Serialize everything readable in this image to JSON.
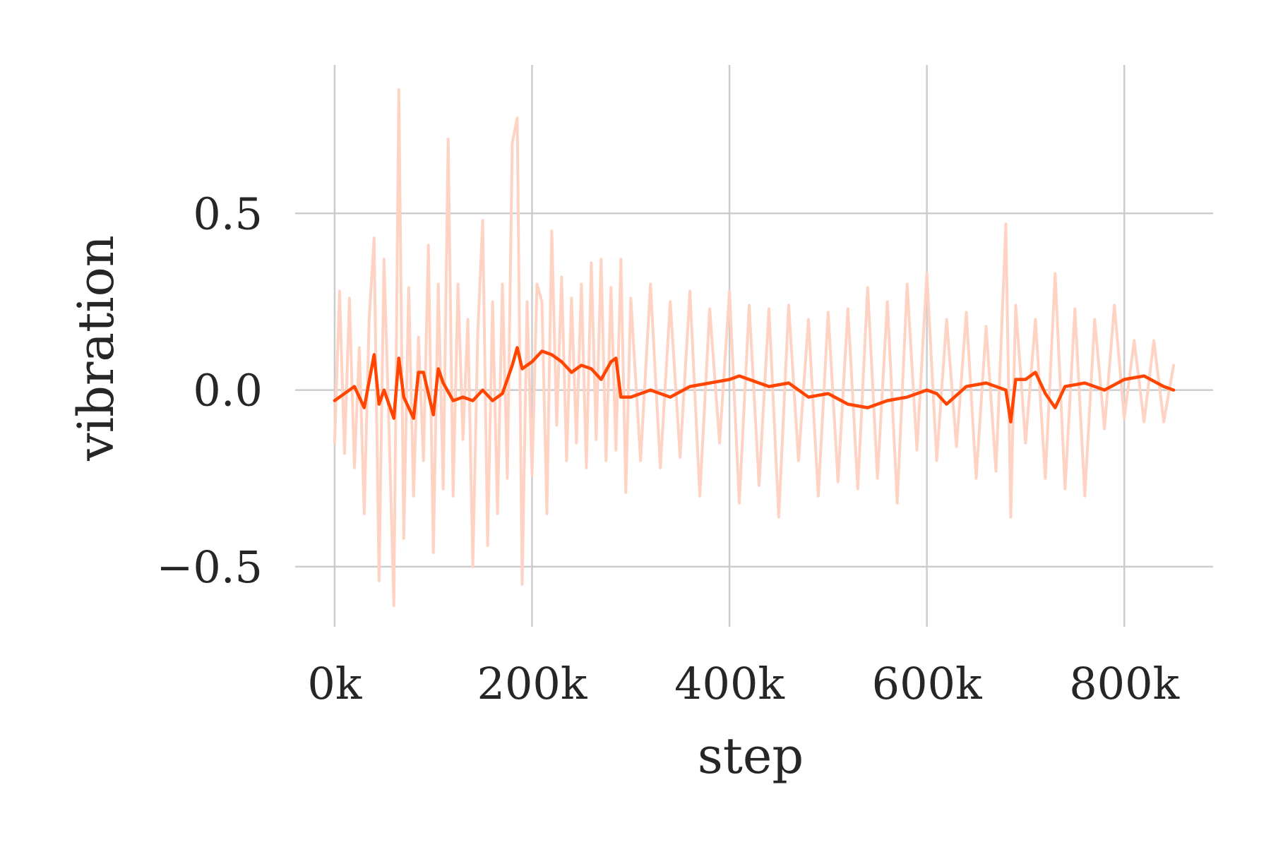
{
  "chart_data": {
    "type": "line",
    "title": "",
    "xlabel": "step",
    "ylabel": "vibration",
    "xlim": [
      -40000,
      890000
    ],
    "ylim": [
      -0.67,
      0.92
    ],
    "x_ticks": [
      {
        "value": 0,
        "label": "0k"
      },
      {
        "value": 200000,
        "label": "200k"
      },
      {
        "value": 400000,
        "label": "400k"
      },
      {
        "value": 600000,
        "label": "600k"
      },
      {
        "value": 800000,
        "label": "800k"
      }
    ],
    "y_ticks": [
      {
        "value": 0.5,
        "label": "0.5"
      },
      {
        "value": 0.0,
        "label": "0.0"
      },
      {
        "value": -0.5,
        "label": "−0.5"
      }
    ],
    "grid": true,
    "legend": "none",
    "series": [
      {
        "role": "raw",
        "color": "#ffd3c4",
        "x": [
          0,
          5000,
          10000,
          15000,
          20000,
          25000,
          30000,
          35000,
          40000,
          45000,
          50000,
          55000,
          60000,
          65000,
          70000,
          75000,
          80000,
          85000,
          90000,
          95000,
          100000,
          105000,
          110000,
          115000,
          120000,
          125000,
          130000,
          135000,
          140000,
          145000,
          150000,
          155000,
          160000,
          165000,
          170000,
          175000,
          180000,
          185000,
          190000,
          195000,
          200000,
          205000,
          210000,
          215000,
          220000,
          225000,
          230000,
          235000,
          240000,
          245000,
          250000,
          255000,
          260000,
          265000,
          270000,
          275000,
          280000,
          285000,
          290000,
          295000,
          300000,
          310000,
          320000,
          330000,
          340000,
          350000,
          360000,
          370000,
          380000,
          390000,
          400000,
          410000,
          420000,
          430000,
          440000,
          450000,
          460000,
          470000,
          480000,
          490000,
          500000,
          510000,
          520000,
          530000,
          540000,
          550000,
          560000,
          570000,
          580000,
          590000,
          600000,
          610000,
          620000,
          630000,
          640000,
          650000,
          660000,
          670000,
          680000,
          685000,
          690000,
          700000,
          710000,
          720000,
          730000,
          740000,
          750000,
          760000,
          770000,
          780000,
          790000,
          800000,
          810000,
          820000,
          830000,
          840000,
          850000
        ],
        "y": [
          -0.15,
          0.28,
          -0.18,
          0.26,
          -0.22,
          0.12,
          -0.35,
          0.2,
          0.43,
          -0.54,
          0.37,
          -0.1,
          -0.61,
          0.85,
          -0.42,
          0.29,
          -0.3,
          0.15,
          -0.2,
          0.41,
          -0.46,
          0.3,
          -0.28,
          0.71,
          -0.3,
          0.3,
          -0.14,
          0.2,
          -0.5,
          0.16,
          0.48,
          -0.44,
          0.25,
          -0.35,
          0.3,
          -0.25,
          0.7,
          0.77,
          -0.55,
          0.25,
          -0.24,
          0.3,
          0.25,
          -0.35,
          0.45,
          -0.1,
          0.32,
          -0.2,
          0.26,
          -0.15,
          0.3,
          -0.22,
          0.36,
          -0.14,
          0.37,
          -0.2,
          0.29,
          -0.17,
          0.37,
          -0.29,
          0.26,
          -0.2,
          0.3,
          -0.22,
          0.25,
          -0.19,
          0.28,
          -0.3,
          0.23,
          -0.15,
          0.28,
          -0.32,
          0.24,
          -0.27,
          0.23,
          -0.36,
          0.24,
          -0.2,
          0.2,
          -0.3,
          0.22,
          -0.26,
          0.23,
          -0.28,
          0.29,
          -0.25,
          0.25,
          -0.32,
          0.3,
          -0.17,
          0.33,
          -0.2,
          0.2,
          -0.16,
          0.22,
          -0.25,
          0.18,
          -0.23,
          0.47,
          -0.36,
          0.24,
          -0.15,
          0.2,
          -0.25,
          0.33,
          -0.28,
          0.23,
          -0.3,
          0.2,
          -0.11,
          0.24,
          -0.08,
          0.14,
          -0.09,
          0.14,
          -0.09,
          0.07
        ]
      },
      {
        "role": "smoothed",
        "color": "#ff4500",
        "x": [
          0,
          10000,
          20000,
          30000,
          40000,
          45000,
          50000,
          60000,
          65000,
          70000,
          80000,
          85000,
          90000,
          100000,
          105000,
          110000,
          120000,
          130000,
          140000,
          150000,
          160000,
          170000,
          180000,
          185000,
          190000,
          200000,
          210000,
          220000,
          230000,
          240000,
          250000,
          260000,
          270000,
          280000,
          285000,
          290000,
          300000,
          320000,
          340000,
          360000,
          380000,
          400000,
          410000,
          420000,
          440000,
          460000,
          480000,
          500000,
          520000,
          540000,
          560000,
          580000,
          600000,
          610000,
          620000,
          640000,
          660000,
          680000,
          685000,
          690000,
          700000,
          710000,
          720000,
          730000,
          740000,
          760000,
          780000,
          800000,
          820000,
          840000,
          850000
        ],
        "y": [
          -0.03,
          -0.01,
          0.01,
          -0.05,
          0.1,
          -0.04,
          0.0,
          -0.08,
          0.09,
          -0.02,
          -0.08,
          0.05,
          0.05,
          -0.07,
          0.06,
          0.02,
          -0.03,
          -0.02,
          -0.03,
          0.0,
          -0.03,
          -0.01,
          0.07,
          0.12,
          0.06,
          0.08,
          0.11,
          0.1,
          0.08,
          0.05,
          0.07,
          0.06,
          0.03,
          0.08,
          0.09,
          -0.02,
          -0.02,
          0.0,
          -0.02,
          0.01,
          0.02,
          0.03,
          0.04,
          0.03,
          0.01,
          0.02,
          -0.02,
          -0.01,
          -0.04,
          -0.05,
          -0.03,
          -0.02,
          0.0,
          -0.01,
          -0.04,
          0.01,
          0.02,
          0.0,
          -0.09,
          0.03,
          0.03,
          0.05,
          -0.01,
          -0.05,
          0.01,
          0.02,
          0.0,
          0.03,
          0.04,
          0.01,
          0.0
        ]
      }
    ]
  }
}
